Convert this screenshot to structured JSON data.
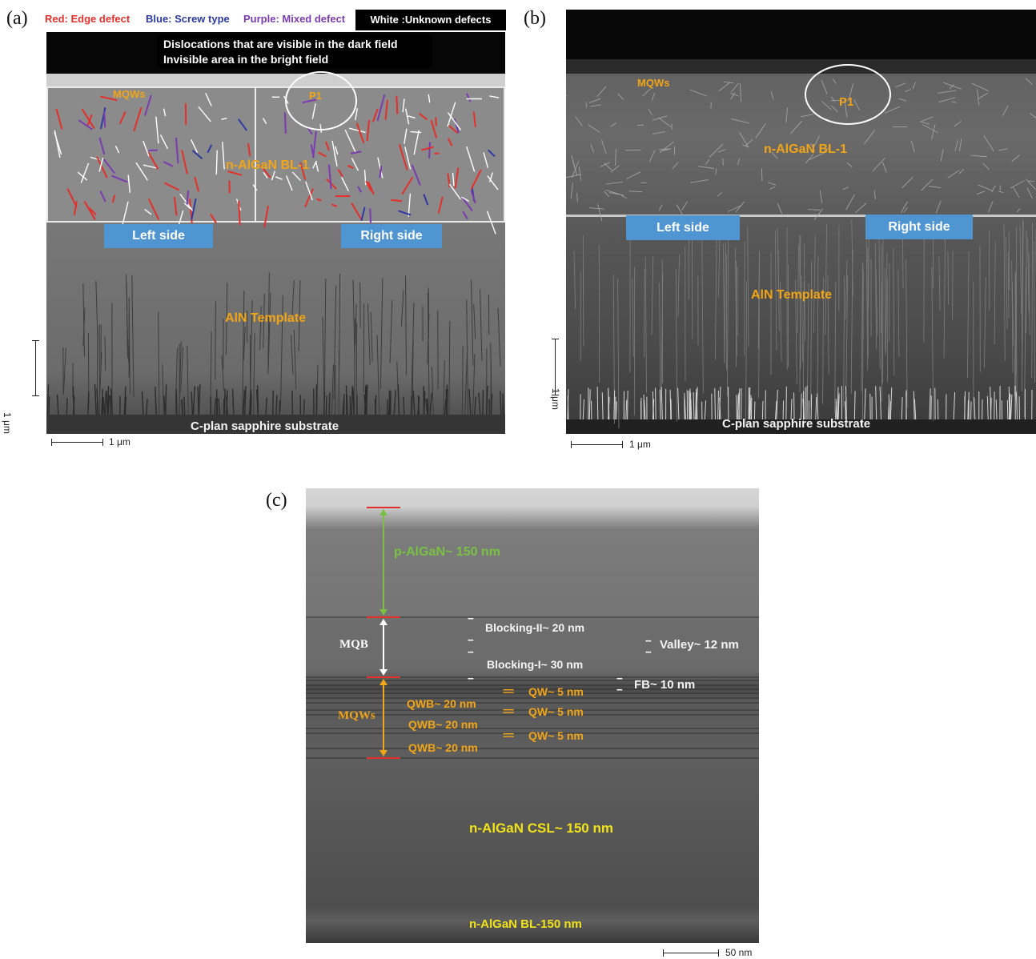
{
  "panel_a": {
    "letter": "(a)",
    "legend": {
      "red": "Red: Edge defect",
      "blue": "Blue: Screw type",
      "purple": "Purple: Mixed defect",
      "white": "White :Unknown defects"
    },
    "note_line1": "Dislocations that are visible in the dark field",
    "note_line2": "Invisible area in the bright field",
    "mqws": "MQWs",
    "p1": "P1",
    "bl": "n-AlGaN BL-1",
    "left": "Left side",
    "right": "Right side",
    "template": "AlN Template",
    "substrate": "C-plan sapphire substrate",
    "scale_h": "1  μm",
    "scale_v": "1  μm"
  },
  "panel_b": {
    "letter": "(b)",
    "mqws": "MQWs",
    "p1": "P1",
    "bl": "n-AlGaN BL-1",
    "left": "Left side",
    "right": "Right side",
    "template": "AlN Template",
    "substrate": "C-plan sapphire substrate",
    "scale_h": "1  μm",
    "scale_v": "1  μm"
  },
  "panel_c": {
    "letter": "(c)",
    "p_algan": "p-AlGaN~ 150 nm",
    "mqb": "MQB",
    "mqws": "MQWs",
    "blocking2": "Blocking-II~ 20 nm",
    "blocking1": "Blocking-I~ 30 nm",
    "valley": "Valley~ 12 nm",
    "fb": "FB~ 10 nm",
    "qw1": "QW~ 5 nm",
    "qw2": "QW~ 5 nm",
    "qw3": "QW~ 5 nm",
    "qwb1": "QWB~ 20 nm",
    "qwb2": "QWB~ 20  nm",
    "qwb3": "QWB~ 20  nm",
    "csl": "n-AlGaN CSL~ 150 nm",
    "bl150": "n-AlGaN BL-150 nm",
    "scale": "50  nm"
  },
  "colors": {
    "edge": "#e4302a",
    "screw": "#2d3aa0",
    "mixed": "#7b3bb0",
    "label_orange": "#f2a516",
    "label_yellow": "#f2e21a",
    "label_green": "#7ac143",
    "box_blue": "#4f95d2"
  }
}
